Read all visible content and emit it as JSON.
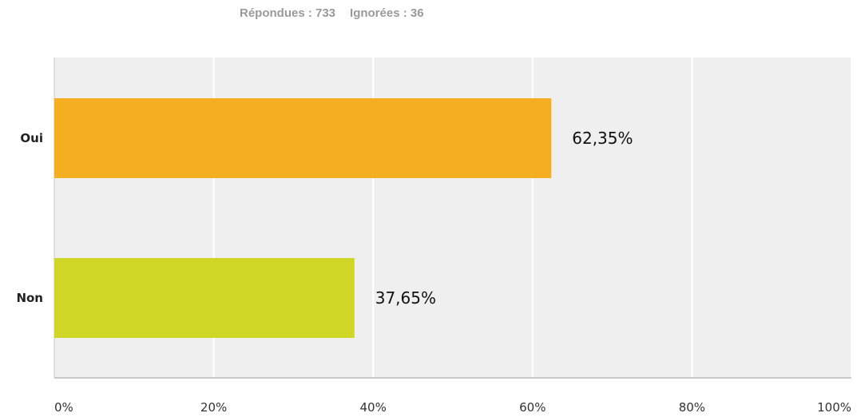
{
  "stats": {
    "answered": "Répondues : 733",
    "skipped": "Ignorées : 36"
  },
  "colors": {
    "plot_background": "#efefef",
    "gridline": "#ffffff",
    "axis": "#c8c8c8"
  },
  "chart_data": {
    "type": "bar",
    "orientation": "horizontal",
    "categories": [
      "Oui",
      "Non"
    ],
    "values": [
      62.35,
      37.65
    ],
    "value_labels": [
      "62,35%",
      "37,65%"
    ],
    "bar_colors": [
      "#f5ae1f",
      "#cfd625"
    ],
    "xlim": [
      0,
      100
    ],
    "x_ticks": [
      0,
      20,
      40,
      60,
      80,
      100
    ],
    "x_tick_labels": [
      "0%",
      "20%",
      "40%",
      "60%",
      "80%",
      "100%"
    ],
    "grid": true
  }
}
